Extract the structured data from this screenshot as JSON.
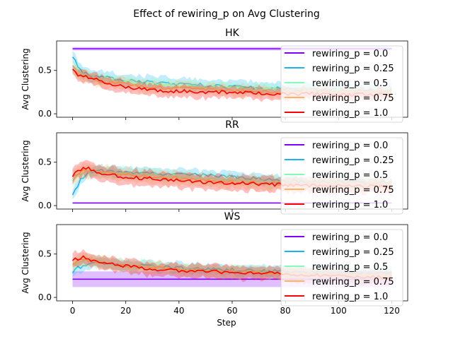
{
  "figure": {
    "title": "Effect of rewiring_p on  Avg Clustering",
    "xlabel": "Step"
  },
  "legend_entries": [
    {
      "label": "rewiring_p = 0.0",
      "color": "#7f00ff"
    },
    {
      "label": "rewiring_p = 0.25",
      "color": "#19b2f2"
    },
    {
      "label": "rewiring_p = 0.5",
      "color": "#80ffb4"
    },
    {
      "label": "rewiring_p = 0.75",
      "color": "#ffb360"
    },
    {
      "label": "rewiring_p = 1.0",
      "color": "#ff0000"
    }
  ],
  "chart_data": [
    {
      "type": "line",
      "title": "HK",
      "xlabel": "",
      "ylabel": "Avg Clustering",
      "xlim": [
        -6,
        126
      ],
      "ylim": [
        -0.04,
        0.84
      ],
      "xticks": [],
      "yticks": [
        0.0,
        0.5
      ],
      "ytick_labels": [
        "0.0",
        "0.5"
      ],
      "legend": "upper right",
      "series": [
        {
          "label_index": 0,
          "x": [
            0,
            120
          ],
          "mean": [
            0.75,
            0.75
          ],
          "band": 0.02
        },
        {
          "label_index": 1,
          "x": [
            0,
            1,
            2,
            4,
            6,
            8,
            10,
            15,
            20,
            30,
            40,
            50,
            60,
            70,
            80,
            90,
            100,
            110,
            120
          ],
          "mean": [
            0.66,
            0.62,
            0.55,
            0.48,
            0.45,
            0.43,
            0.42,
            0.41,
            0.39,
            0.36,
            0.34,
            0.33,
            0.31,
            0.3,
            0.29,
            0.28,
            0.28,
            0.27,
            0.27
          ],
          "band": 0.08
        },
        {
          "label_index": 2,
          "x": [
            0,
            2,
            4,
            8,
            15,
            20,
            30,
            40,
            50,
            60,
            70,
            80,
            90,
            100,
            110,
            120
          ],
          "mean": [
            0.55,
            0.5,
            0.46,
            0.42,
            0.39,
            0.37,
            0.34,
            0.32,
            0.31,
            0.3,
            0.29,
            0.28,
            0.27,
            0.26,
            0.26,
            0.26
          ],
          "band": 0.07
        },
        {
          "label_index": 3,
          "x": [
            0,
            2,
            4,
            8,
            15,
            20,
            30,
            40,
            50,
            60,
            70,
            80,
            90,
            100,
            110,
            120
          ],
          "mean": [
            0.5,
            0.46,
            0.43,
            0.39,
            0.36,
            0.34,
            0.31,
            0.29,
            0.28,
            0.27,
            0.26,
            0.25,
            0.25,
            0.24,
            0.24,
            0.24
          ],
          "band": 0.08
        },
        {
          "label_index": 4,
          "x": [
            0,
            1,
            2,
            4,
            6,
            8,
            10,
            15,
            20,
            25,
            30,
            40,
            50,
            60,
            70,
            80,
            90,
            100,
            110,
            120
          ],
          "mean": [
            0.52,
            0.48,
            0.45,
            0.44,
            0.42,
            0.4,
            0.38,
            0.34,
            0.31,
            0.29,
            0.27,
            0.26,
            0.25,
            0.25,
            0.24,
            0.23,
            0.23,
            0.22,
            0.22,
            0.22
          ],
          "band": 0.08
        }
      ]
    },
    {
      "type": "line",
      "title": "RR",
      "xlabel": "",
      "ylabel": "Avg Clustering",
      "xlim": [
        -6,
        126
      ],
      "ylim": [
        -0.04,
        0.84
      ],
      "xticks": [],
      "yticks": [
        0.0,
        0.5
      ],
      "ytick_labels": [
        "0.0",
        "0.5"
      ],
      "legend": "upper right",
      "series": [
        {
          "label_index": 0,
          "x": [
            0,
            120
          ],
          "mean": [
            0.03,
            0.03
          ],
          "band": 0.005
        },
        {
          "label_index": 1,
          "x": [
            0,
            1,
            2,
            3,
            5,
            7,
            10,
            15,
            20,
            30,
            40,
            50,
            60,
            70,
            80,
            90,
            100,
            110,
            120
          ],
          "mean": [
            0.12,
            0.18,
            0.24,
            0.3,
            0.36,
            0.39,
            0.4,
            0.39,
            0.38,
            0.37,
            0.36,
            0.35,
            0.33,
            0.31,
            0.29,
            0.28,
            0.27,
            0.27,
            0.26
          ],
          "band": 0.07
        },
        {
          "label_index": 2,
          "x": [
            0,
            2,
            5,
            10,
            15,
            20,
            30,
            40,
            50,
            60,
            70,
            80,
            90,
            100,
            110,
            120
          ],
          "mean": [
            0.3,
            0.36,
            0.4,
            0.39,
            0.38,
            0.37,
            0.35,
            0.33,
            0.31,
            0.29,
            0.28,
            0.27,
            0.26,
            0.26,
            0.25,
            0.25
          ],
          "band": 0.08
        },
        {
          "label_index": 3,
          "x": [
            0,
            2,
            5,
            10,
            15,
            20,
            30,
            40,
            50,
            60,
            70,
            80,
            90,
            100,
            110,
            120
          ],
          "mean": [
            0.33,
            0.38,
            0.41,
            0.39,
            0.37,
            0.35,
            0.33,
            0.31,
            0.29,
            0.27,
            0.26,
            0.25,
            0.25,
            0.24,
            0.24,
            0.24
          ],
          "band": 0.09
        },
        {
          "label_index": 4,
          "x": [
            0,
            1,
            2,
            4,
            6,
            8,
            10,
            15,
            20,
            30,
            40,
            50,
            60,
            70,
            80,
            90,
            100,
            110,
            120
          ],
          "mean": [
            0.34,
            0.38,
            0.4,
            0.42,
            0.43,
            0.4,
            0.37,
            0.35,
            0.33,
            0.31,
            0.29,
            0.27,
            0.26,
            0.25,
            0.24,
            0.23,
            0.23,
            0.22,
            0.22
          ],
          "band": 0.1
        }
      ]
    },
    {
      "type": "line",
      "title": "WS",
      "xlabel": "Step",
      "ylabel": "Avg Clustering",
      "xlim": [
        -6,
        126
      ],
      "ylim": [
        -0.04,
        0.84
      ],
      "xticks": [
        0,
        20,
        40,
        60,
        80,
        100,
        120
      ],
      "xtick_labels": [
        "0",
        "20",
        "40",
        "60",
        "80",
        "100",
        "120"
      ],
      "yticks": [
        0.0,
        0.5
      ],
      "ytick_labels": [
        "0.0",
        "0.5"
      ],
      "legend": "upper right",
      "series": [
        {
          "label_index": 0,
          "x": [
            0,
            120
          ],
          "mean": [
            0.21,
            0.21
          ],
          "band": 0.09
        },
        {
          "label_index": 1,
          "x": [
            0,
            1,
            2,
            4,
            6,
            8,
            10,
            15,
            20,
            30,
            40,
            50,
            60,
            70,
            80,
            90,
            100,
            110,
            120
          ],
          "mean": [
            0.3,
            0.32,
            0.34,
            0.36,
            0.38,
            0.4,
            0.39,
            0.38,
            0.37,
            0.36,
            0.34,
            0.33,
            0.32,
            0.31,
            0.3,
            0.29,
            0.28,
            0.28,
            0.27
          ],
          "band": 0.07
        },
        {
          "label_index": 2,
          "x": [
            0,
            2,
            5,
            10,
            15,
            20,
            30,
            40,
            50,
            60,
            70,
            80,
            90,
            100,
            110,
            120
          ],
          "mean": [
            0.37,
            0.4,
            0.42,
            0.41,
            0.39,
            0.37,
            0.35,
            0.33,
            0.31,
            0.3,
            0.29,
            0.28,
            0.27,
            0.26,
            0.26,
            0.25
          ],
          "band": 0.08
        },
        {
          "label_index": 3,
          "x": [
            0,
            2,
            5,
            10,
            15,
            20,
            30,
            40,
            50,
            60,
            70,
            80,
            90,
            100,
            110,
            120
          ],
          "mean": [
            0.4,
            0.42,
            0.43,
            0.41,
            0.38,
            0.36,
            0.34,
            0.32,
            0.3,
            0.29,
            0.28,
            0.27,
            0.26,
            0.25,
            0.25,
            0.24
          ],
          "band": 0.08
        },
        {
          "label_index": 4,
          "x": [
            0,
            1,
            2,
            4,
            6,
            8,
            10,
            15,
            20,
            30,
            40,
            50,
            60,
            70,
            80,
            90,
            100,
            110,
            120
          ],
          "mean": [
            0.42,
            0.45,
            0.44,
            0.46,
            0.44,
            0.42,
            0.4,
            0.38,
            0.36,
            0.33,
            0.31,
            0.3,
            0.29,
            0.28,
            0.27,
            0.26,
            0.25,
            0.24,
            0.24
          ],
          "band": 0.09
        }
      ]
    }
  ]
}
